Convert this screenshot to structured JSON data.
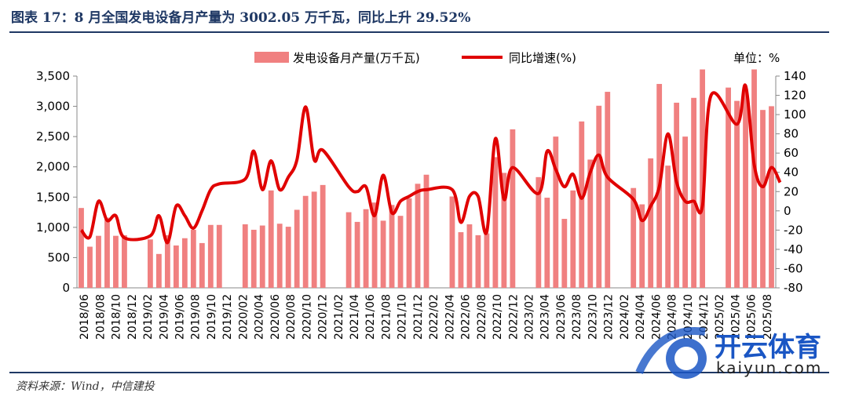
{
  "header": {
    "title": "图表 17：8 月全国发电设备月产量为 3002.05 万千瓦，同比上升 29.52%"
  },
  "footer": {
    "source": "资料来源：Wind，中信建投"
  },
  "watermark": {
    "brand": "开云体育",
    "site": "kaiyun.com"
  },
  "colors": {
    "bar": "#f08080",
    "line": "#e00000",
    "rule": "#1f3864"
  },
  "chart_data": {
    "type": "bar+line",
    "unit_label": "单位：%",
    "legend": [
      "发电设备月产量(万千瓦)",
      "同比增速(%)"
    ],
    "left_axis": {
      "min": 0,
      "max": 3500,
      "ticks": [
        0,
        500,
        1000,
        1500,
        2000,
        2500,
        3000,
        3500
      ],
      "tick_labels": [
        "0",
        "500",
        "1,000",
        "1,500",
        "2,000",
        "2,500",
        "3,000",
        "3,500"
      ]
    },
    "right_axis": {
      "min": -80,
      "max": 140,
      "ticks": [
        -80,
        -60,
        -40,
        -20,
        0,
        20,
        40,
        60,
        80,
        100,
        120,
        140
      ]
    },
    "x_tick_labels": [
      "2018/06",
      "2018/08",
      "2018/10",
      "2018/12",
      "2019/02",
      "2019/04",
      "2019/06",
      "2019/08",
      "2019/10",
      "2019/12",
      "2020/02",
      "2020/04",
      "2020/06",
      "2020/08",
      "2020/10",
      "2020/12",
      "2021/02",
      "2021/04",
      "2021/06",
      "2021/08",
      "2021/10",
      "2021/12",
      "2022/02",
      "2022/04",
      "2022/06",
      "2022/08",
      "2022/10",
      "2022/12",
      "2023/02",
      "2023/04",
      "2023/06",
      "2023/08",
      "2023/10",
      "2023/12",
      "2024/02",
      "2024/04",
      "2024/06",
      "2024/08",
      "2024/10",
      "2024/12",
      "2025/02",
      "2025/04",
      "2025/06",
      "2025/08"
    ],
    "series": [
      {
        "name": "发电设备月产量(万千瓦)",
        "kind": "bar",
        "values": [
          1320,
          680,
          860,
          1160,
          860,
          870,
          null,
          null,
          800,
          560,
          870,
          700,
          820,
          960,
          740,
          1040,
          1040,
          null,
          null,
          1050,
          960,
          1030,
          1610,
          1060,
          1010,
          1290,
          1520,
          1590,
          1700,
          null,
          null,
          1250,
          1090,
          1300,
          1410,
          1110,
          1370,
          1190,
          1480,
          1720,
          1870,
          null,
          null,
          1510,
          920,
          1050,
          870,
          900,
          2160,
          1900,
          2620,
          null,
          null,
          1830,
          1490,
          2500,
          1140,
          1610,
          2750,
          2120,
          3010,
          3240,
          null,
          null,
          1650,
          1380,
          2140,
          3370,
          2020,
          3060,
          2500,
          3140,
          3610,
          null,
          null,
          3310,
          3090,
          3270,
          3610,
          2940,
          3002.05
        ]
      },
      {
        "name": "同比增速(%)",
        "kind": "line",
        "values": [
          -20,
          -27,
          10,
          -10,
          -5,
          -28,
          null,
          null,
          -26,
          -5,
          -33,
          5,
          -5,
          -18,
          0,
          22,
          28,
          null,
          null,
          33,
          62,
          22,
          52,
          22,
          35,
          53,
          108,
          53,
          63,
          null,
          null,
          25,
          20,
          25,
          -5,
          37,
          -2,
          10,
          15,
          20,
          22,
          null,
          null,
          22,
          -12,
          15,
          15,
          -22,
          75,
          12,
          45,
          null,
          null,
          18,
          62,
          43,
          25,
          38,
          13,
          40,
          58,
          35,
          null,
          null,
          12,
          -10,
          5,
          25,
          80,
          30,
          10,
          10,
          5,
          120,
          null,
          null,
          90,
          130,
          48,
          25,
          45,
          29.52
        ]
      }
    ]
  }
}
